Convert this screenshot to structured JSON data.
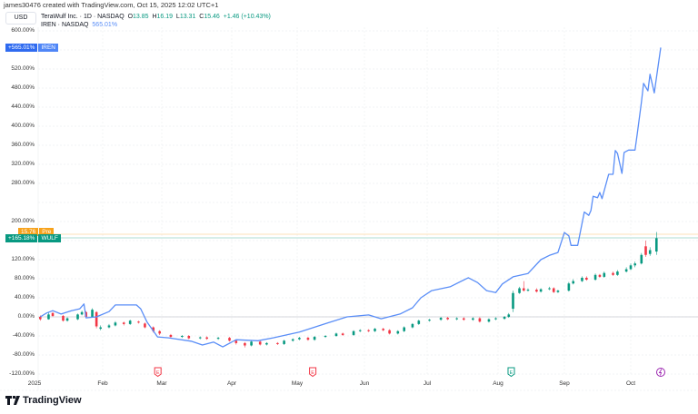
{
  "credit": "james30476 created with TradingView.com, Oct 15, 2025 12:02 UTC+1",
  "currency": "USD",
  "legend": {
    "main": "TeraWulf Inc. · 1D · NASDAQ",
    "o_label": "O",
    "o": "13.85",
    "h_label": "H",
    "h": "16.19",
    "l_label": "L",
    "l": "13.31",
    "c_label": "C",
    "c": "15.46",
    "change": "+1.46 (+10.43%)",
    "compare": "IREN · NASDAQ",
    "compare_value": "565.01%"
  },
  "tags": {
    "iren_value": "+565.01%",
    "iren_label": "IREN",
    "pre_value": "15.76",
    "pre_label": "Pre",
    "wulf_value": "+165.18%",
    "wulf_label": "WULF"
  },
  "footer": {
    "logo": "TradingView"
  },
  "colors": {
    "up": "#089981",
    "down": "#f23645",
    "iren": "#5a8ef7",
    "pre": "#f7a21b",
    "zero": "#c8cad0"
  },
  "events": [
    {
      "type": "earnings",
      "icon": "earnings-icon",
      "letter": "E",
      "color": "#f23645",
      "date": "2025-02-28"
    },
    {
      "type": "earnings",
      "icon": "earnings-icon",
      "letter": "E",
      "color": "#f23645",
      "date": "2025-05-09"
    },
    {
      "type": "earnings",
      "icon": "earnings-icon",
      "letter": "E",
      "color": "#089981",
      "date": "2025-08-08"
    },
    {
      "type": "split",
      "icon": "split-icon",
      "letter": "",
      "color": "#9c27b0",
      "date": "2025-10-15"
    }
  ],
  "chart_data": {
    "type": "line+candlestick",
    "yaxis": {
      "unit": "%",
      "ylim": [
        -120,
        620
      ],
      "ticks": [
        -120,
        -80,
        -40,
        0,
        40,
        80,
        120,
        200,
        280,
        320,
        360,
        400,
        440,
        480,
        520,
        600
      ],
      "tick_labels": [
        "-120.00%",
        "-80.00%",
        "-40.00%",
        "0.00%",
        "40.00%",
        "80.00%",
        "120.00%",
        "200.00%",
        "280.00%",
        "320.00%",
        "360.00%",
        "400.00%",
        "440.00%",
        "480.00%",
        "520.00%",
        "600.00%"
      ]
    },
    "xaxis": {
      "tick_labels": [
        "2025",
        "Feb",
        "Mar",
        "Apr",
        "May",
        "Jun",
        "Jul",
        "Aug",
        "Sep",
        "Oct"
      ]
    },
    "grid": true,
    "series": [
      {
        "name": "IREN",
        "type": "line",
        "points": [
          [
            "2025-01-02",
            0
          ],
          [
            "2025-01-05",
            8
          ],
          [
            "2025-01-08",
            13
          ],
          [
            "2025-01-12",
            6
          ],
          [
            "2025-01-17",
            13
          ],
          [
            "2025-01-21",
            17
          ],
          [
            "2025-01-23",
            27
          ],
          [
            "2025-01-24",
            -2
          ],
          [
            "2025-01-29",
            0
          ],
          [
            "2025-02-04",
            11
          ],
          [
            "2025-02-07",
            25
          ],
          [
            "2025-02-17",
            25
          ],
          [
            "2025-02-19",
            17
          ],
          [
            "2025-02-22",
            -11
          ],
          [
            "2025-02-27",
            -42
          ],
          [
            "2025-03-04",
            -44
          ],
          [
            "2025-03-14",
            -51
          ],
          [
            "2025-03-19",
            -59
          ],
          [
            "2025-03-24",
            -53
          ],
          [
            "2025-03-28",
            -63
          ],
          [
            "2025-04-03",
            -48
          ],
          [
            "2025-04-13",
            -50
          ],
          [
            "2025-04-20",
            -44
          ],
          [
            "2025-05-02",
            -32
          ],
          [
            "2025-05-15",
            -13
          ],
          [
            "2025-05-24",
            0
          ],
          [
            "2025-06-03",
            4
          ],
          [
            "2025-06-09",
            -4
          ],
          [
            "2025-06-18",
            6
          ],
          [
            "2025-06-24",
            19
          ],
          [
            "2025-06-28",
            40
          ],
          [
            "2025-07-03",
            55
          ],
          [
            "2025-07-11",
            63
          ],
          [
            "2025-07-19",
            82
          ],
          [
            "2025-07-23",
            72
          ],
          [
            "2025-07-27",
            55
          ],
          [
            "2025-07-31",
            51
          ],
          [
            "2025-08-03",
            69
          ],
          [
            "2025-08-08",
            84
          ],
          [
            "2025-08-15",
            91
          ],
          [
            "2025-08-21",
            120
          ],
          [
            "2025-08-25",
            129
          ],
          [
            "2025-08-29",
            135
          ],
          [
            "2025-09-01",
            177
          ],
          [
            "2025-09-03",
            170
          ],
          [
            "2025-09-04",
            150
          ],
          [
            "2025-09-07",
            150
          ],
          [
            "2025-09-10",
            220
          ],
          [
            "2025-09-12",
            213
          ],
          [
            "2025-09-13",
            223
          ],
          [
            "2025-09-14",
            253
          ],
          [
            "2025-09-16",
            250
          ],
          [
            "2025-09-17",
            261
          ],
          [
            "2025-09-18",
            248
          ],
          [
            "2025-09-21",
            299
          ],
          [
            "2025-09-23",
            299
          ],
          [
            "2025-09-24",
            349
          ],
          [
            "2025-09-25",
            343
          ],
          [
            "2025-09-27",
            301
          ],
          [
            "2025-09-28",
            345
          ],
          [
            "2025-09-30",
            350
          ],
          [
            "2025-10-03",
            350
          ],
          [
            "2025-10-04",
            383
          ],
          [
            "2025-10-06",
            451
          ],
          [
            "2025-10-07",
            490
          ],
          [
            "2025-10-09",
            474
          ],
          [
            "2025-10-10",
            509
          ],
          [
            "2025-10-12",
            470
          ],
          [
            "2025-10-15",
            565.01
          ]
        ]
      },
      {
        "name": "WULF",
        "type": "candlestick",
        "fields": [
          "date",
          "open",
          "close",
          "high",
          "low"
        ],
        "candles": [
          [
            "2025-01-02",
            0,
            -5,
            3,
            -8
          ],
          [
            "2025-01-06",
            -5,
            5,
            9,
            -6
          ],
          [
            "2025-01-08",
            8,
            2,
            10,
            0
          ],
          [
            "2025-01-13",
            2,
            -8,
            4,
            -10
          ],
          [
            "2025-01-15",
            -8,
            -3,
            -1,
            -10
          ],
          [
            "2025-01-20",
            -5,
            5,
            7,
            -7
          ],
          [
            "2025-01-22",
            5,
            10,
            13,
            3
          ],
          [
            "2025-01-24",
            10,
            0,
            12,
            -2
          ],
          [
            "2025-01-27",
            0,
            15,
            18,
            -2
          ],
          [
            "2025-01-29",
            10,
            -20,
            12,
            -24
          ],
          [
            "2025-01-31",
            -25,
            -22,
            -18,
            -28
          ],
          [
            "2025-02-04",
            -22,
            -18,
            -15,
            -24
          ],
          [
            "2025-02-07",
            -18,
            -12,
            -9,
            -20
          ],
          [
            "2025-02-11",
            -12,
            -15,
            -10,
            -18
          ],
          [
            "2025-02-14",
            -15,
            -8,
            -6,
            -17
          ],
          [
            "2025-02-18",
            -10,
            -12,
            -8,
            -14
          ],
          [
            "2025-02-21",
            -14,
            -22,
            -12,
            -24
          ],
          [
            "2025-02-25",
            -22,
            -30,
            -20,
            -33
          ],
          [
            "2025-02-28",
            -30,
            -35,
            -28,
            -38
          ],
          [
            "2025-03-05",
            -38,
            -42,
            -36,
            -45
          ],
          [
            "2025-03-10",
            -42,
            -40,
            -38,
            -44
          ],
          [
            "2025-03-13",
            -40,
            -45,
            -38,
            -47
          ],
          [
            "2025-03-18",
            -45,
            -43,
            -41,
            -47
          ],
          [
            "2025-03-21",
            -43,
            -46,
            -41,
            -48
          ],
          [
            "2025-03-26",
            -46,
            -44,
            -42,
            -48
          ],
          [
            "2025-03-31",
            -44,
            -50,
            -42,
            -52
          ],
          [
            "2025-04-03",
            -50,
            -55,
            -48,
            -58
          ],
          [
            "2025-04-07",
            -55,
            -60,
            -53,
            -64
          ],
          [
            "2025-04-10",
            -60,
            -52,
            -50,
            -62
          ],
          [
            "2025-04-14",
            -52,
            -58,
            -50,
            -60
          ],
          [
            "2025-04-17",
            -58,
            -55,
            -53,
            -60
          ],
          [
            "2025-04-22",
            -55,
            -57,
            -53,
            -59
          ],
          [
            "2025-04-25",
            -57,
            -50,
            -48,
            -59
          ],
          [
            "2025-04-29",
            -50,
            -47,
            -45,
            -52
          ],
          [
            "2025-05-02",
            -47,
            -44,
            -42,
            -49
          ],
          [
            "2025-05-06",
            -44,
            -48,
            -42,
            -50
          ],
          [
            "2025-05-09",
            -48,
            -42,
            -40,
            -50
          ],
          [
            "2025-05-14",
            -42,
            -40,
            -38,
            -44
          ],
          [
            "2025-05-19",
            -40,
            -35,
            -33,
            -42
          ],
          [
            "2025-05-22",
            -35,
            -38,
            -33,
            -40
          ],
          [
            "2025-05-27",
            -38,
            -30,
            -28,
            -40
          ],
          [
            "2025-05-30",
            -30,
            -28,
            -26,
            -32
          ],
          [
            "2025-06-03",
            -28,
            -30,
            -26,
            -32
          ],
          [
            "2025-06-06",
            -30,
            -25,
            -23,
            -32
          ],
          [
            "2025-06-10",
            -25,
            -28,
            -23,
            -30
          ],
          [
            "2025-06-13",
            -28,
            -35,
            -26,
            -37
          ],
          [
            "2025-06-17",
            -35,
            -30,
            -28,
            -37
          ],
          [
            "2025-06-20",
            -30,
            -22,
            -20,
            -32
          ],
          [
            "2025-06-24",
            -22,
            -15,
            -13,
            -24
          ],
          [
            "2025-06-27",
            -15,
            -8,
            -6,
            -17
          ],
          [
            "2025-07-02",
            -8,
            -6,
            -4,
            -10
          ],
          [
            "2025-07-07",
            -6,
            -2,
            0,
            -8
          ],
          [
            "2025-07-10",
            -2,
            -5,
            0,
            -7
          ],
          [
            "2025-07-14",
            -5,
            -3,
            -1,
            -7
          ],
          [
            "2025-07-17",
            -3,
            -6,
            -1,
            -8
          ],
          [
            "2025-07-21",
            -6,
            -3,
            -1,
            -8
          ],
          [
            "2025-07-24",
            -3,
            -10,
            -1,
            -12
          ],
          [
            "2025-07-28",
            -10,
            -5,
            -3,
            -12
          ],
          [
            "2025-07-31",
            -5,
            -3,
            -1,
            -7
          ],
          [
            "2025-08-04",
            -4,
            0,
            2,
            -6
          ],
          [
            "2025-08-06",
            0,
            5,
            8,
            -2
          ],
          [
            "2025-08-08",
            17,
            50,
            55,
            10
          ],
          [
            "2025-08-11",
            50,
            60,
            63,
            48
          ],
          [
            "2025-08-13",
            60,
            55,
            75,
            53
          ],
          [
            "2025-08-15",
            55,
            57,
            60,
            53
          ],
          [
            "2025-08-19",
            57,
            53,
            60,
            51
          ],
          [
            "2025-08-21",
            53,
            58,
            60,
            51
          ],
          [
            "2025-08-25",
            58,
            60,
            63,
            56
          ],
          [
            "2025-08-27",
            60,
            52,
            62,
            50
          ],
          [
            "2025-08-29",
            52,
            55,
            57,
            50
          ],
          [
            "2025-09-03",
            55,
            70,
            73,
            53
          ],
          [
            "2025-09-05",
            70,
            75,
            79,
            68
          ],
          [
            "2025-09-09",
            75,
            82,
            85,
            73
          ],
          [
            "2025-09-11",
            82,
            78,
            85,
            76
          ],
          [
            "2025-09-15",
            78,
            88,
            91,
            76
          ],
          [
            "2025-09-17",
            88,
            84,
            90,
            82
          ],
          [
            "2025-09-19",
            84,
            92,
            95,
            82
          ],
          [
            "2025-09-23",
            92,
            88,
            95,
            86
          ],
          [
            "2025-09-25",
            88,
            95,
            98,
            86
          ],
          [
            "2025-09-29",
            95,
            100,
            104,
            93
          ],
          [
            "2025-10-01",
            100,
            108,
            112,
            98
          ],
          [
            "2025-10-03",
            108,
            112,
            116,
            104
          ],
          [
            "2025-10-06",
            112,
            130,
            134,
            110
          ],
          [
            "2025-10-08",
            148,
            130,
            160,
            126
          ],
          [
            "2025-10-10",
            132,
            140,
            146,
            128
          ],
          [
            "2025-10-13",
            137,
            165.18,
            178,
            130
          ]
        ]
      }
    ]
  }
}
